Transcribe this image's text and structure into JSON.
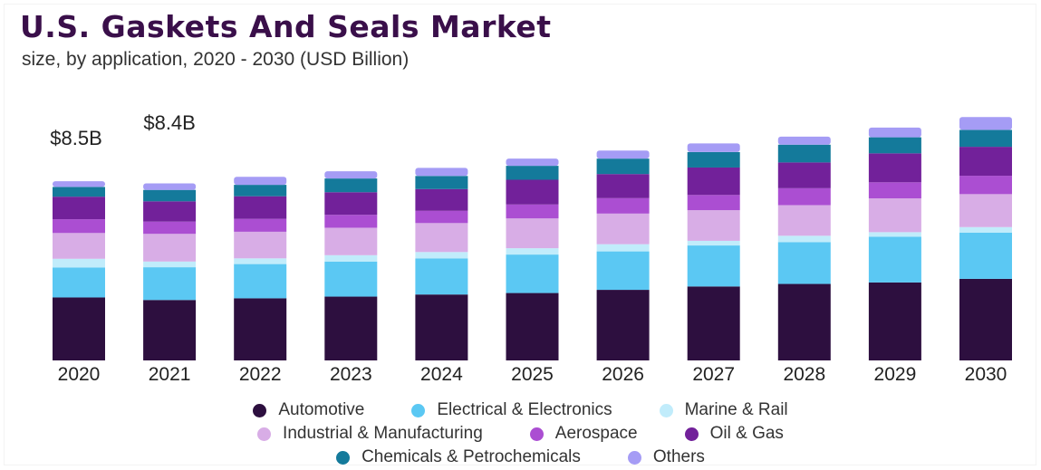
{
  "chart_data": {
    "type": "bar",
    "stacked": true,
    "title": "U.S. Gaskets And Seals Market",
    "subtitle": "size, by application, 2020 - 2030 (USD Billion)",
    "categories": [
      "2020",
      "2021",
      "2022",
      "2023",
      "2024",
      "2025",
      "2026",
      "2027",
      "2028",
      "2029",
      "2030"
    ],
    "series": [
      {
        "name": "Automotive",
        "color": "#2d0f3f",
        "values": [
          2.98,
          2.86,
          2.94,
          3.02,
          3.12,
          3.19,
          3.34,
          3.5,
          3.62,
          3.69,
          3.86
        ]
      },
      {
        "name": "Electrical & Electronics",
        "color": "#5bc8f3",
        "values": [
          1.42,
          1.55,
          1.62,
          1.66,
          1.71,
          1.82,
          1.82,
          1.94,
          1.98,
          2.16,
          2.19
        ]
      },
      {
        "name": "Marine & Rail",
        "color": "#c1ecfb",
        "values": [
          0.41,
          0.27,
          0.27,
          0.3,
          0.3,
          0.3,
          0.34,
          0.22,
          0.3,
          0.22,
          0.26
        ]
      },
      {
        "name": "Industrial & Manufacturing",
        "color": "#d8ade6",
        "values": [
          1.22,
          1.31,
          1.26,
          1.3,
          1.37,
          1.41,
          1.45,
          1.45,
          1.45,
          1.6,
          1.56
        ]
      },
      {
        "name": "Aerospace",
        "color": "#ab4ed2",
        "values": [
          0.65,
          0.58,
          0.61,
          0.61,
          0.58,
          0.66,
          0.73,
          0.72,
          0.8,
          0.76,
          0.87
        ]
      },
      {
        "name": "Oil & Gas",
        "color": "#72219a",
        "values": [
          1.07,
          0.96,
          1.07,
          1.07,
          1.03,
          1.17,
          1.14,
          1.3,
          1.22,
          1.37,
          1.37
        ]
      },
      {
        "name": "Chemicals & Petrochemicals",
        "color": "#147a9b",
        "values": [
          0.46,
          0.54,
          0.54,
          0.65,
          0.62,
          0.66,
          0.73,
          0.73,
          0.84,
          0.76,
          0.8
        ]
      },
      {
        "name": "Others",
        "color": "#a59cf5",
        "values": [
          0.27,
          0.31,
          0.38,
          0.34,
          0.38,
          0.34,
          0.38,
          0.41,
          0.38,
          0.46,
          0.61
        ]
      }
    ],
    "data_labels": [
      {
        "category": "2020",
        "text": "$8.5B"
      },
      {
        "category": "2021",
        "text": "$8.4B"
      }
    ],
    "ylim": [
      0,
      15
    ],
    "grid": false,
    "legend_position": "bottom"
  }
}
